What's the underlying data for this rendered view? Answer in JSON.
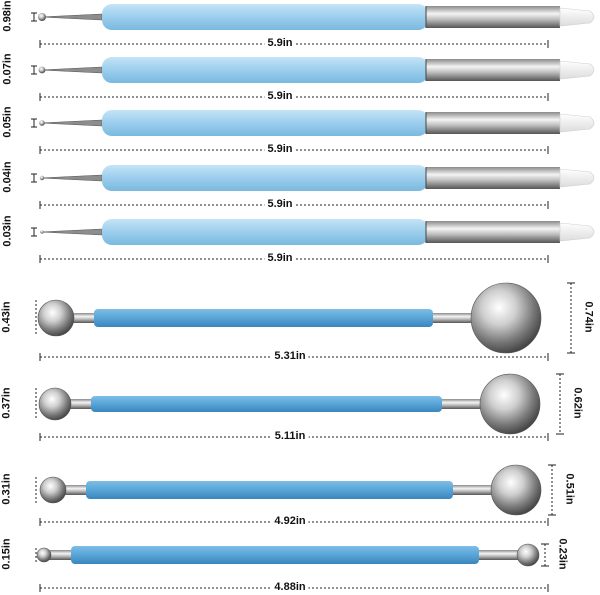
{
  "colors": {
    "pen_body": "#9fd0ee",
    "pen_body_dark": "#7bbde3",
    "tool_body": "#5aa7d9",
    "tool_body_dark": "#3d8cc4",
    "metal_light": "#f2f2f2",
    "metal_dark": "#6f6f6f",
    "silicone_tip": "#f6f6f6",
    "dim_line": "#222222",
    "background": "#ffffff"
  },
  "pens": [
    {
      "tip_size": "0.98in",
      "length": "5.9in"
    },
    {
      "tip_size": "0.07in",
      "length": "5.9in"
    },
    {
      "tip_size": "0.05in",
      "length": "5.9in"
    },
    {
      "tip_size": "0.04in",
      "length": "5.9in"
    },
    {
      "tip_size": "0.03in",
      "length": "5.9in"
    }
  ],
  "ball_tools": [
    {
      "small_ball": "0.43in",
      "large_ball": "0.74in",
      "length": "5.31in"
    },
    {
      "small_ball": "0.37in",
      "large_ball": "0.62in",
      "length": "5.11in"
    },
    {
      "small_ball": "0.31in",
      "large_ball": "0.51in",
      "length": "4.92in"
    },
    {
      "small_ball": "0.15in",
      "large_ball": "0.23in",
      "length": "4.88in"
    }
  ]
}
